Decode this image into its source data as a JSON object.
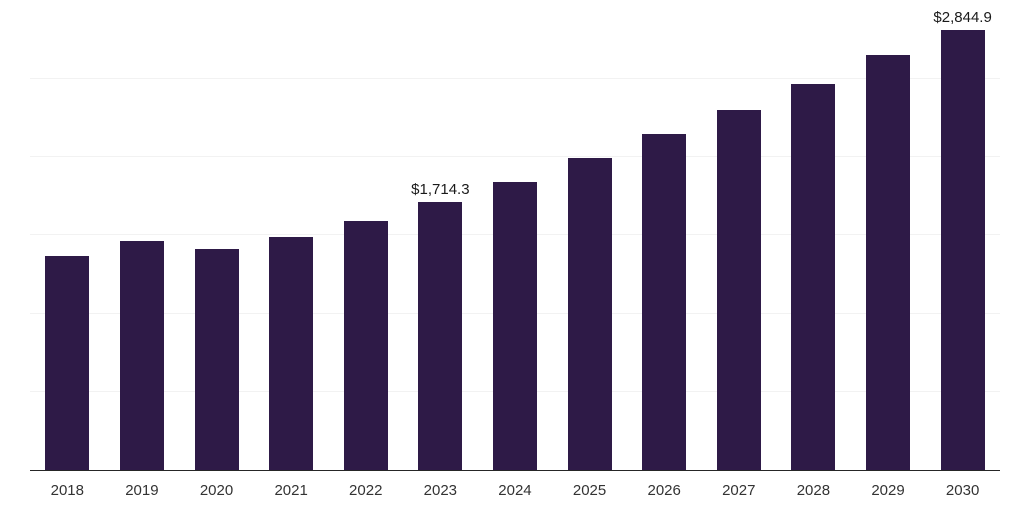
{
  "chart_data": {
    "type": "bar",
    "title": "",
    "xlabel": "",
    "ylabel": "",
    "categories": [
      "2018",
      "2019",
      "2020",
      "2021",
      "2022",
      "2023",
      "2024",
      "2025",
      "2026",
      "2027",
      "2028",
      "2029",
      "2030"
    ],
    "values": [
      1370,
      1465,
      1410,
      1490,
      1590,
      1714.3,
      1840,
      1995,
      2145,
      2300,
      2465,
      2650,
      2844.9
    ],
    "data_labels": [
      "",
      "",
      "",
      "",
      "",
      "$1,714.3",
      "",
      "",
      "",
      "",
      "",
      "",
      "$2,844.9"
    ],
    "ylim": [
      0,
      2940
    ],
    "grid_values": [
      500,
      1000,
      1500,
      2000,
      2500
    ],
    "grid": "on",
    "legend": "none",
    "bar_color": "#2e1a47",
    "axis_color": "#262626",
    "grid_color": "#f2f2f2",
    "label_color": "#1a1a1a",
    "tick_color": "#333333"
  }
}
